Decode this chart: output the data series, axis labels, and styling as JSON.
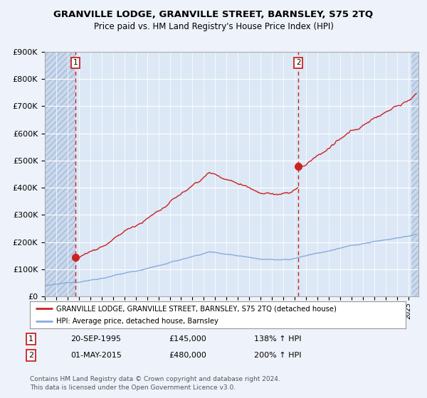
{
  "title": "GRANVILLE LODGE, GRANVILLE STREET, BARNSLEY, S75 2TQ",
  "subtitle": "Price paid vs. HM Land Registry's House Price Index (HPI)",
  "ylabel_ticks": [
    "£0",
    "£100K",
    "£200K",
    "£300K",
    "£400K",
    "£500K",
    "£600K",
    "£700K",
    "£800K",
    "£900K"
  ],
  "ylim": [
    0,
    900000
  ],
  "xlim_start": 1993.0,
  "xlim_end": 2025.9,
  "hpi_color": "#88aadd",
  "price_color": "#cc2222",
  "t1": 1995.72,
  "t2": 2015.33,
  "p1": 145000,
  "p2": 480000,
  "legend_label1": "GRANVILLE LODGE, GRANVILLE STREET, BARNSLEY, S75 2TQ (detached house)",
  "legend_label2": "HPI: Average price, detached house, Barnsley",
  "table_row1": [
    "1",
    "20-SEP-1995",
    "£145,000",
    "138% ↑ HPI"
  ],
  "table_row2": [
    "2",
    "01-MAY-2015",
    "£480,000",
    "200% ↑ HPI"
  ],
  "footnote": "Contains HM Land Registry data © Crown copyright and database right 2024.\nThis data is licensed under the Open Government Licence v3.0.",
  "background_color": "#eef2fa",
  "plot_bg_color": "#dce8f5",
  "grid_color": "#ffffff",
  "hatch_color": "#c8d8ee"
}
